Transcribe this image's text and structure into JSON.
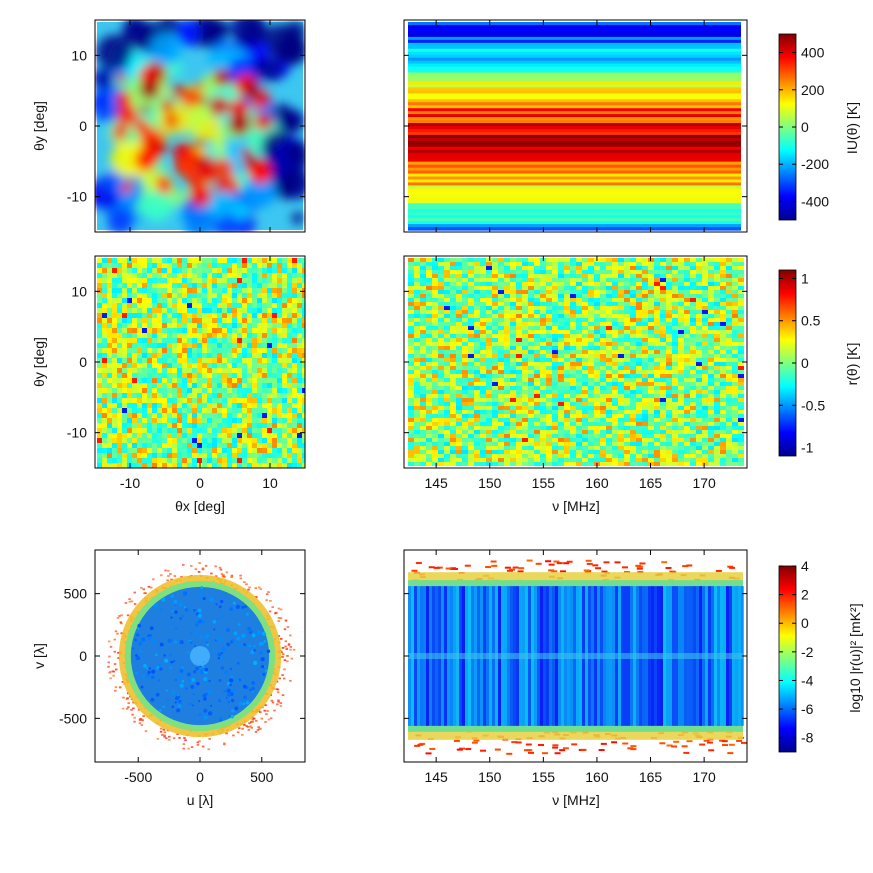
{
  "chart_data": [
    {
      "id": "p1",
      "type": "heatmap",
      "title": "",
      "xlabel": "",
      "ylabel": "θy [deg]",
      "xlim": [
        -15,
        15
      ],
      "ylim": [
        -15,
        15
      ],
      "xticks": [
        -10,
        0,
        10
      ],
      "yticks": [
        10,
        0,
        -10
      ],
      "xtick_labels": [],
      "ytick_labels": [
        "10",
        "0",
        "-10"
      ],
      "description": "sky image of smooth diffuse emission, high values clustered near center-left"
    },
    {
      "id": "p2",
      "type": "heatmap",
      "title": "",
      "xlabel": "",
      "ylabel": "",
      "xlim": [
        142,
        174
      ],
      "ylim": [
        -15,
        15
      ],
      "xticks": [
        145,
        150,
        155,
        160,
        165,
        170
      ],
      "yticks": [
        10,
        0,
        -10
      ],
      "xtick_labels": [],
      "ytick_labels": [],
      "colorbar": {
        "label": "IU(θ) [K]",
        "range": [
          -500,
          500
        ],
        "ticks": [
          400,
          200,
          0,
          -200,
          -400
        ],
        "tick_labels": [
          "400",
          "200",
          "0",
          "-200",
          "-400"
        ]
      },
      "description": "horizontal stripes constant in frequency"
    },
    {
      "id": "p3",
      "type": "heatmap",
      "title": "",
      "xlabel": "θx [deg]",
      "ylabel": "θy [deg]",
      "xlim": [
        -15,
        15
      ],
      "ylim": [
        -15,
        15
      ],
      "xticks": [
        -10,
        0,
        10
      ],
      "yticks": [
        10,
        0,
        -10
      ],
      "xtick_labels": [
        "-10",
        "0",
        "10"
      ],
      "ytick_labels": [
        "10",
        "0",
        "-10"
      ],
      "description": "noise-like residual image"
    },
    {
      "id": "p4",
      "type": "heatmap",
      "title": "",
      "xlabel": "ν [MHz]",
      "ylabel": "",
      "xlim": [
        142,
        174
      ],
      "ylim": [
        -15,
        15
      ],
      "xticks": [
        145,
        150,
        155,
        160,
        165,
        170
      ],
      "yticks": [
        10,
        0,
        -10
      ],
      "xtick_labels": [
        "145",
        "150",
        "155",
        "160",
        "165",
        "170"
      ],
      "ytick_labels": [],
      "colorbar": {
        "label": "r(θ) [K]",
        "range": [
          -1.1,
          1.1
        ],
        "ticks": [
          1,
          0.5,
          0,
          -0.5,
          -1
        ],
        "tick_labels": [
          "1",
          "0.5",
          "0",
          "-0.5",
          "-1"
        ]
      },
      "description": "noise-like residual vs frequency"
    },
    {
      "id": "p5",
      "type": "heatmap",
      "title": "",
      "xlabel": "u [λ]",
      "ylabel": "v [λ]",
      "xlim": [
        -850,
        850
      ],
      "ylim": [
        -850,
        850
      ],
      "xticks": [
        -500,
        0,
        500
      ],
      "yticks": [
        500,
        0,
        -500
      ],
      "xtick_labels": [
        "-500",
        "0",
        "500"
      ],
      "ytick_labels": [
        "500",
        "0",
        "-500"
      ],
      "description": "uv-plane disk, low values inside radius ~550, ring of higher values out to ~750"
    },
    {
      "id": "p6",
      "type": "heatmap",
      "title": "",
      "xlabel": "ν [MHz]",
      "ylabel": "",
      "xlim": [
        142,
        174
      ],
      "ylim": [
        -850,
        850
      ],
      "xticks": [
        145,
        150,
        155,
        160,
        165,
        170
      ],
      "yticks": [
        500,
        0,
        -500
      ],
      "xtick_labels": [
        "145",
        "150",
        "155",
        "160",
        "165",
        "170"
      ],
      "ytick_labels": [],
      "colorbar": {
        "label": "log10 |r(u)|² [mK²]",
        "range": [
          -9,
          4
        ],
        "ticks": [
          4,
          2,
          0,
          -2,
          -4,
          -6,
          -8
        ],
        "tick_labels": [
          "4",
          "2",
          "0",
          "-2",
          "-4",
          "-6",
          "-8"
        ]
      },
      "description": "uv-frequency cut, low band between v ~ -550 and 550, high values in outer bands"
    }
  ]
}
